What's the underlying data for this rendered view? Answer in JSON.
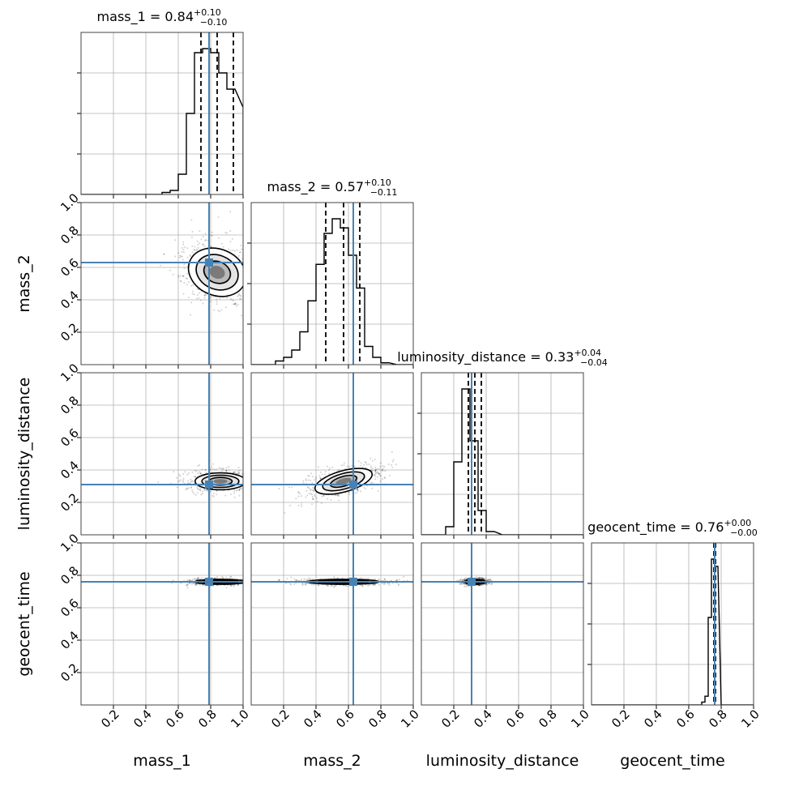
{
  "chart_data": {
    "type": "corner",
    "parameters": [
      "mass_1",
      "mass_2",
      "luminosity_distance",
      "geocent_time"
    ],
    "axis_labels": [
      "mass_1",
      "mass_2",
      "luminosity_distance",
      "geocent_time"
    ],
    "axis_range": [
      0,
      1
    ],
    "tick_labels": [
      "0.2",
      "0.4",
      "0.6",
      "0.8",
      "1.0"
    ],
    "grid": true,
    "truth_color": "#4682b4",
    "titles": [
      {
        "param": "mass_1",
        "text": "mass_1 = 0.84",
        "upper": "+0.10",
        "lower": "−0.10"
      },
      {
        "param": "mass_2",
        "text": "mass_2 = 0.57",
        "upper": "+0.10",
        "lower": "−0.11"
      },
      {
        "param": "luminosity_distance",
        "text": "luminosity_distance = 0.33",
        "upper": "+0.04",
        "lower": "−0.04"
      },
      {
        "param": "geocent_time",
        "text": "geocent_time = 0.76",
        "upper": "+0.00",
        "lower": "−0.00"
      }
    ],
    "truths": [
      0.79,
      0.63,
      0.31,
      0.76
    ],
    "posterior_medians": [
      0.84,
      0.57,
      0.33,
      0.76
    ],
    "quantiles": [
      [
        0.74,
        0.94
      ],
      [
        0.46,
        0.67
      ],
      [
        0.29,
        0.37
      ],
      [
        0.755,
        0.765
      ]
    ],
    "histograms": [
      {
        "param": "mass_1",
        "x": [
          0.55,
          0.6,
          0.65,
          0.7,
          0.75,
          0.8,
          0.85,
          0.9,
          0.95,
          1.0
        ],
        "values": [
          1,
          2,
          10,
          40,
          70,
          72,
          70,
          60,
          52,
          43
        ]
      },
      {
        "param": "mass_2",
        "x": [
          0.2,
          0.25,
          0.3,
          0.35,
          0.4,
          0.45,
          0.5,
          0.55,
          0.6,
          0.65,
          0.7,
          0.75,
          0.8,
          0.85,
          0.9
        ],
        "values": [
          2,
          4,
          8,
          18,
          35,
          55,
          72,
          80,
          75,
          60,
          42,
          10,
          4,
          1,
          0
        ]
      },
      {
        "param": "luminosity_distance",
        "x": [
          0.2,
          0.25,
          0.3,
          0.35,
          0.4,
          0.45,
          0.5
        ],
        "values": [
          5,
          45,
          90,
          58,
          15,
          2,
          0
        ]
      },
      {
        "param": "geocent_time",
        "x": [
          0.7,
          0.72,
          0.74,
          0.76,
          0.78,
          0.8
        ],
        "values": [
          2,
          6,
          60,
          100,
          95,
          0
        ]
      }
    ],
    "contour_panels": [
      {
        "x": "mass_1",
        "y": "mass_2",
        "center": [
          0.84,
          0.57
        ],
        "spread": [
          0.14,
          0.11
        ],
        "tilt": -0.5
      },
      {
        "x": "mass_1",
        "y": "luminosity_distance",
        "center": [
          0.86,
          0.33
        ],
        "spread": [
          0.12,
          0.04
        ],
        "tilt": 0
      },
      {
        "x": "mass_2",
        "y": "luminosity_distance",
        "center": [
          0.57,
          0.33
        ],
        "spread": [
          0.14,
          0.05
        ],
        "tilt": 0.35
      },
      {
        "x": "mass_1",
        "y": "geocent_time",
        "center": [
          0.86,
          0.76
        ],
        "spread": [
          0.12,
          0.012
        ],
        "tilt": 0
      },
      {
        "x": "mass_2",
        "y": "geocent_time",
        "center": [
          0.57,
          0.76
        ],
        "spread": [
          0.17,
          0.012
        ],
        "tilt": 0
      },
      {
        "x": "luminosity_distance",
        "y": "geocent_time",
        "center": [
          0.33,
          0.76
        ],
        "spread": [
          0.05,
          0.012
        ],
        "tilt": 0
      }
    ]
  }
}
